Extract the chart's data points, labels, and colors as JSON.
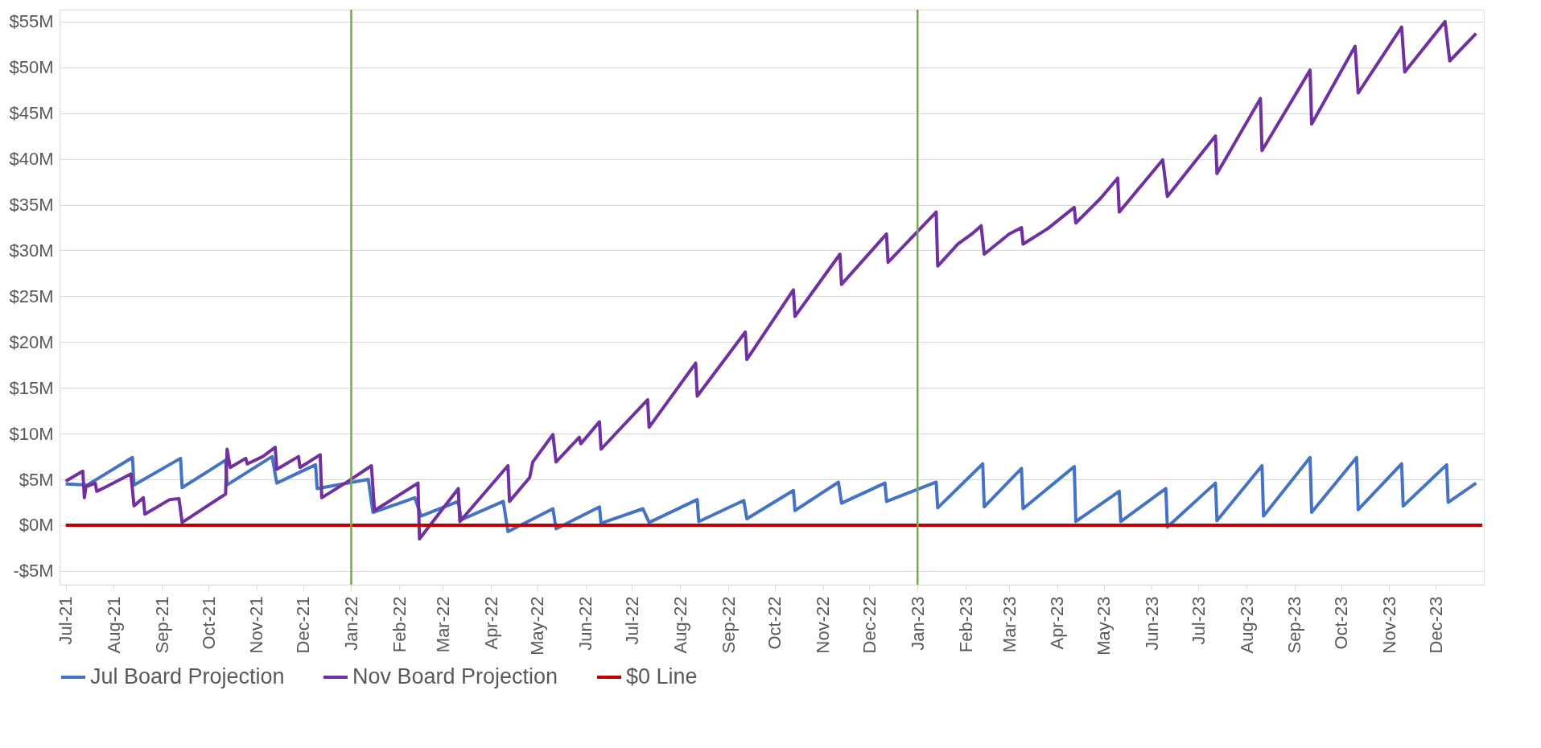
{
  "chart_data": {
    "type": "line",
    "xlim": [
      "2021-06-27",
      "2024-01-01"
    ],
    "ylim": [
      -6.5,
      56.3
    ],
    "xticks": [
      {
        "value": "2021-07-01",
        "label": "Jul-21"
      },
      {
        "value": "2021-08-01",
        "label": "Aug-21"
      },
      {
        "value": "2021-09-01",
        "label": "Sep-21"
      },
      {
        "value": "2021-10-01",
        "label": "Oct-21"
      },
      {
        "value": "2021-11-01",
        "label": "Nov-21"
      },
      {
        "value": "2021-12-01",
        "label": "Dec-21"
      },
      {
        "value": "2022-01-01",
        "label": "Jan-22"
      },
      {
        "value": "2022-02-01",
        "label": "Feb-22"
      },
      {
        "value": "2022-03-01",
        "label": "Mar-22"
      },
      {
        "value": "2022-04-01",
        "label": "Apr-22"
      },
      {
        "value": "2022-05-01",
        "label": "May-22"
      },
      {
        "value": "2022-06-01",
        "label": "Jun-22"
      },
      {
        "value": "2022-07-01",
        "label": "Jul-22"
      },
      {
        "value": "2022-08-01",
        "label": "Aug-22"
      },
      {
        "value": "2022-09-01",
        "label": "Sep-22"
      },
      {
        "value": "2022-10-01",
        "label": "Oct-22"
      },
      {
        "value": "2022-11-01",
        "label": "Nov-22"
      },
      {
        "value": "2022-12-01",
        "label": "Dec-22"
      },
      {
        "value": "2023-01-01",
        "label": "Jan-23"
      },
      {
        "value": "2023-02-01",
        "label": "Feb-23"
      },
      {
        "value": "2023-03-01",
        "label": "Mar-23"
      },
      {
        "value": "2023-04-01",
        "label": "Apr-23"
      },
      {
        "value": "2023-05-01",
        "label": "May-23"
      },
      {
        "value": "2023-06-01",
        "label": "Jun-23"
      },
      {
        "value": "2023-07-01",
        "label": "Jul-23"
      },
      {
        "value": "2023-08-01",
        "label": "Aug-23"
      },
      {
        "value": "2023-09-01",
        "label": "Sep-23"
      },
      {
        "value": "2023-10-01",
        "label": "Oct-23"
      },
      {
        "value": "2023-11-01",
        "label": "Nov-23"
      },
      {
        "value": "2023-12-01",
        "label": "Dec-23"
      }
    ],
    "yticks": [
      {
        "value": -5,
        "label": "-$5M"
      },
      {
        "value": 0,
        "label": "$0M"
      },
      {
        "value": 5,
        "label": "$5M"
      },
      {
        "value": 10,
        "label": "$10M"
      },
      {
        "value": 15,
        "label": "$15M"
      },
      {
        "value": 20,
        "label": "$20M"
      },
      {
        "value": 25,
        "label": "$25M"
      },
      {
        "value": 30,
        "label": "$30M"
      },
      {
        "value": 35,
        "label": "$35M"
      },
      {
        "value": 40,
        "label": "$40M"
      },
      {
        "value": 45,
        "label": "$45M"
      },
      {
        "value": 50,
        "label": "$50M"
      },
      {
        "value": 55,
        "label": "$55M"
      }
    ],
    "grid": "y",
    "legend": "bottom",
    "line_style": "solid",
    "ref_lines": [
      {
        "axis": "x",
        "value": "2022-01-01",
        "color": "#70ad47"
      },
      {
        "axis": "x",
        "value": "2023-01-01",
        "color": "#70ad47"
      }
    ],
    "series": [
      {
        "name": "Jul Board Projection",
        "color": "#4472c4",
        "x": [
          "2021-07-01",
          "2021-07-15",
          "2021-08-13",
          "2021-08-14",
          "2021-09-13",
          "2021-09-14",
          "2021-10-12",
          "2021-10-13",
          "2021-11-11",
          "2021-11-14",
          "2021-12-09",
          "2021-12-10",
          "2022-01-12",
          "2022-01-15",
          "2022-02-11",
          "2022-02-15",
          "2022-03-11",
          "2022-03-13",
          "2022-04-09",
          "2022-04-12",
          "2022-05-11",
          "2022-05-13",
          "2022-06-10",
          "2022-06-11",
          "2022-07-08",
          "2022-07-12",
          "2022-08-12",
          "2022-08-13",
          "2022-09-11",
          "2022-09-13",
          "2022-10-13",
          "2022-10-14",
          "2022-11-11",
          "2022-11-13",
          "2022-12-11",
          "2022-12-12",
          "2023-01-13",
          "2023-01-14",
          "2023-02-12",
          "2023-02-13",
          "2023-03-09",
          "2023-03-10",
          "2023-04-12",
          "2023-04-13",
          "2023-05-11",
          "2023-05-12",
          "2023-06-10",
          "2023-06-11",
          "2023-07-12",
          "2023-07-13",
          "2023-08-11",
          "2023-08-12",
          "2023-09-11",
          "2023-09-12",
          "2023-10-11",
          "2023-10-12",
          "2023-11-09",
          "2023-11-10",
          "2023-12-08",
          "2023-12-09",
          "2023-12-27"
        ],
        "values": [
          4.5,
          4.4,
          7.4,
          4.4,
          7.3,
          4.1,
          7.1,
          4.4,
          7.5,
          4.6,
          6.6,
          4.0,
          5.0,
          1.4,
          3.0,
          1.0,
          2.6,
          0.6,
          2.6,
          -0.7,
          1.8,
          -0.4,
          2.0,
          0.2,
          1.8,
          0.3,
          2.8,
          0.4,
          2.7,
          0.7,
          3.8,
          1.6,
          4.7,
          2.4,
          4.6,
          2.6,
          4.7,
          1.9,
          6.7,
          2.0,
          6.2,
          1.8,
          6.4,
          0.4,
          3.7,
          0.4,
          4.0,
          -0.2,
          4.6,
          0.5,
          6.5,
          1.0,
          7.4,
          1.4,
          7.4,
          1.7,
          6.7,
          2.1,
          6.6,
          2.5,
          4.6
        ]
      },
      {
        "name": "Nov Board Projection",
        "color": "#7030a0",
        "x": [
          "2021-07-01",
          "2021-07-12",
          "2021-07-13",
          "2021-07-14",
          "2021-07-20",
          "2021-07-21",
          "2021-07-27",
          "2021-08-12",
          "2021-08-14",
          "2021-08-20",
          "2021-08-21",
          "2021-09-06",
          "2021-09-12",
          "2021-09-14",
          "2021-10-12",
          "2021-10-13",
          "2021-10-15",
          "2021-10-25",
          "2021-10-26",
          "2021-11-05",
          "2021-11-13",
          "2021-11-14",
          "2021-11-28",
          "2021-11-29",
          "2021-12-12",
          "2021-12-13",
          "2021-12-30",
          "2022-01-14",
          "2022-01-16",
          "2022-02-13",
          "2022-02-14",
          "2022-03-11",
          "2022-03-12",
          "2022-04-12",
          "2022-04-13",
          "2022-04-26",
          "2022-04-28",
          "2022-05-11",
          "2022-05-13",
          "2022-05-28",
          "2022-05-29",
          "2022-06-10",
          "2022-06-11",
          "2022-07-11",
          "2022-07-12",
          "2022-08-11",
          "2022-08-12",
          "2022-09-12",
          "2022-09-13",
          "2022-10-13",
          "2022-10-14",
          "2022-11-12",
          "2022-11-13",
          "2022-12-12",
          "2022-12-13",
          "2023-01-13",
          "2023-01-14",
          "2023-01-27",
          "2023-02-05",
          "2023-02-11",
          "2023-02-13",
          "2023-03-01",
          "2023-03-09",
          "2023-03-10",
          "2023-03-26",
          "2023-04-12",
          "2023-04-13",
          "2023-04-29",
          "2023-05-10",
          "2023-05-11",
          "2023-06-08",
          "2023-06-11",
          "2023-07-12",
          "2023-07-13",
          "2023-08-10",
          "2023-08-11",
          "2023-09-11",
          "2023-09-12",
          "2023-10-10",
          "2023-10-12",
          "2023-11-09",
          "2023-11-11",
          "2023-12-07",
          "2023-12-10",
          "2023-12-27"
        ],
        "values": [
          4.8,
          5.9,
          3.0,
          4.2,
          4.6,
          3.7,
          4.2,
          5.6,
          2.1,
          3.0,
          1.2,
          2.8,
          2.9,
          0.3,
          3.4,
          8.3,
          6.3,
          7.3,
          6.7,
          7.5,
          8.5,
          6.1,
          7.5,
          6.3,
          7.7,
          3.0,
          4.8,
          6.5,
          1.6,
          4.6,
          -1.5,
          4.0,
          0.4,
          6.5,
          2.6,
          5.2,
          6.9,
          9.9,
          6.9,
          9.6,
          8.9,
          11.3,
          8.3,
          13.7,
          10.7,
          17.7,
          14.1,
          21.1,
          18.1,
          25.7,
          22.8,
          29.6,
          26.3,
          31.8,
          28.7,
          34.2,
          28.3,
          30.7,
          31.8,
          32.7,
          29.6,
          31.8,
          32.5,
          30.7,
          32.4,
          34.7,
          33.0,
          35.7,
          37.9,
          34.2,
          39.9,
          35.9,
          42.5,
          38.4,
          46.6,
          40.9,
          49.7,
          43.8,
          52.3,
          47.2,
          54.4,
          49.5,
          55.0,
          50.7,
          53.7
        ]
      },
      {
        "name": "$0 Line",
        "color": "#c00000",
        "x": [
          "2021-07-01",
          "2023-12-31"
        ],
        "values": [
          0,
          0
        ]
      }
    ]
  }
}
